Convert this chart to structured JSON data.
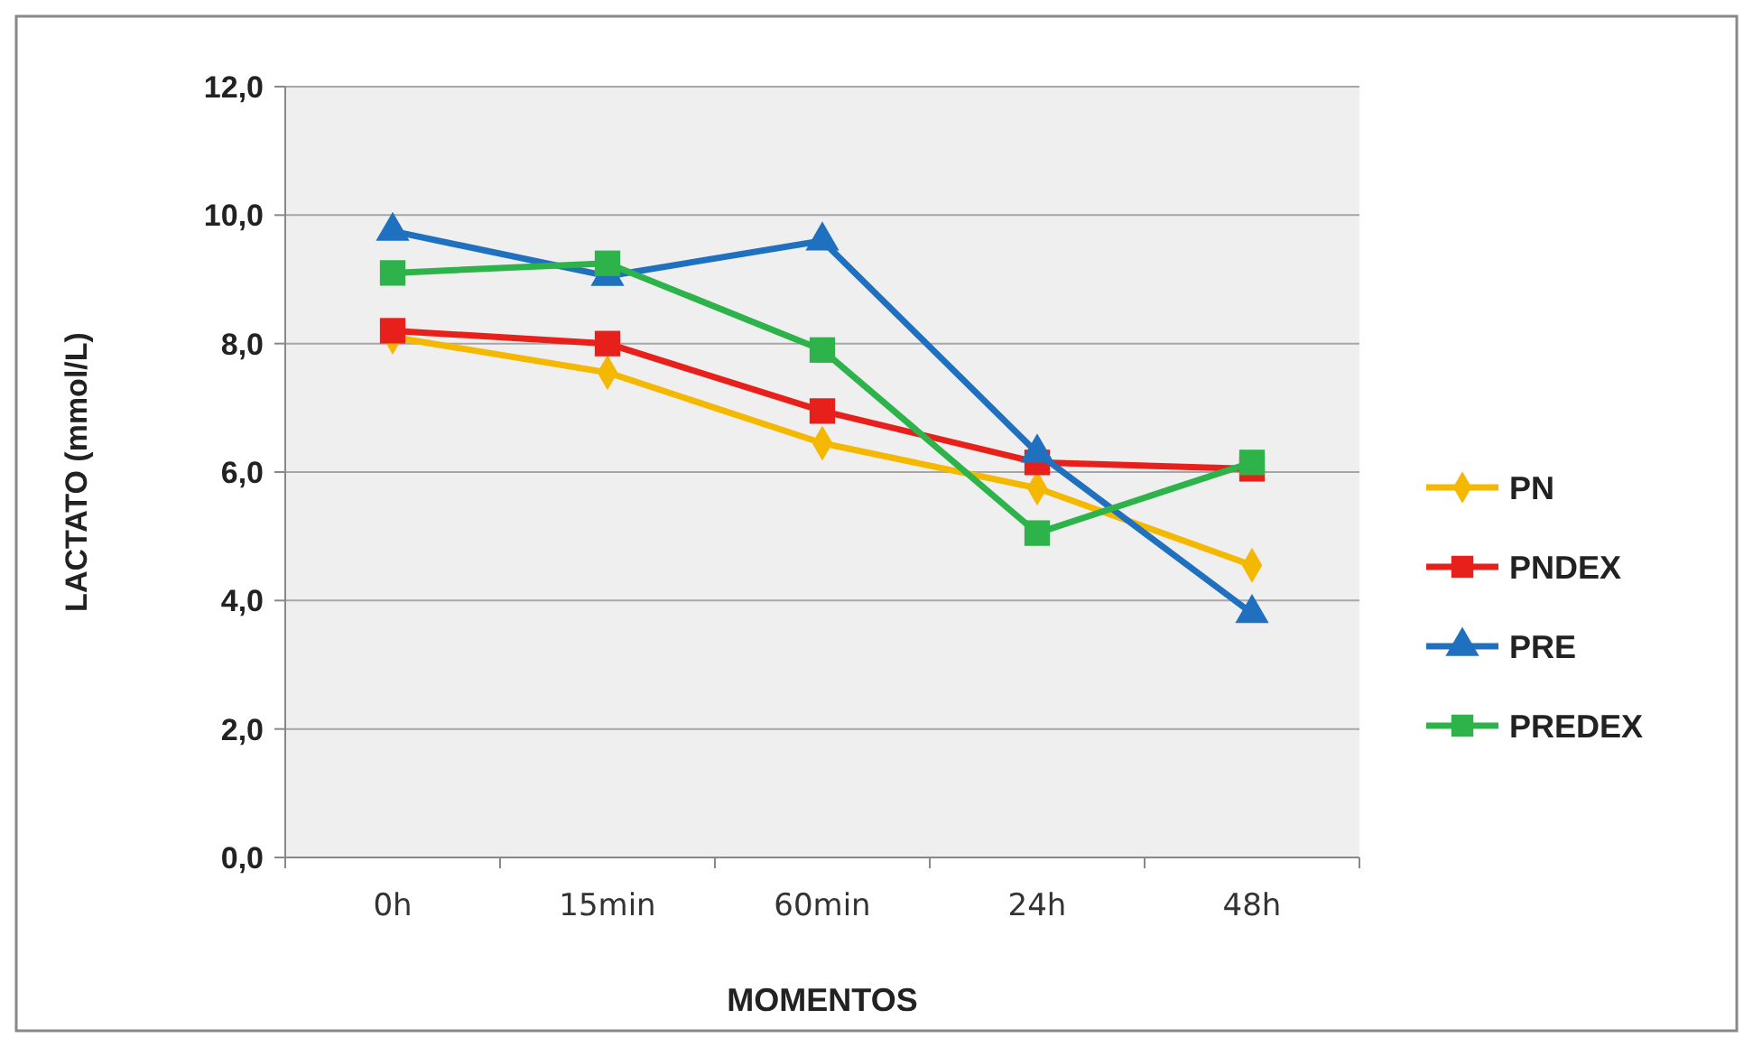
{
  "chart_data": {
    "type": "line",
    "xlabel": "MOMENTOS",
    "ylabel": "LACTATO (mmol/L)",
    "categories": [
      "0h",
      "15min",
      "60min",
      "24h",
      "48h"
    ],
    "series": [
      {
        "name": "PN",
        "color": "#f5b800",
        "marker": "diamond",
        "values": [
          8.1,
          7.55,
          6.45,
          5.75,
          4.55
        ]
      },
      {
        "name": "PNDEX",
        "color": "#e8201c",
        "marker": "square",
        "values": [
          8.2,
          8.0,
          6.95,
          6.15,
          6.05
        ]
      },
      {
        "name": "PRE",
        "color": "#2070c0",
        "marker": "triangle",
        "values": [
          9.75,
          9.05,
          9.6,
          6.3,
          3.8
        ]
      },
      {
        "name": "PREDEX",
        "color": "#2db34a",
        "marker": "square",
        "values": [
          9.1,
          9.25,
          7.9,
          5.05,
          6.15
        ]
      }
    ],
    "ylim": [
      0,
      12
    ],
    "yticks": [
      {
        "value": 0,
        "label": "0,0"
      },
      {
        "value": 2,
        "label": "2,0"
      },
      {
        "value": 4,
        "label": "4,0"
      },
      {
        "value": 6,
        "label": "6,0"
      },
      {
        "value": 8,
        "label": "8,0"
      },
      {
        "value": 10,
        "label": "10,0"
      },
      {
        "value": 12,
        "label": "12,0"
      }
    ],
    "grid": "y",
    "legend": "right",
    "line_style": "solid"
  }
}
